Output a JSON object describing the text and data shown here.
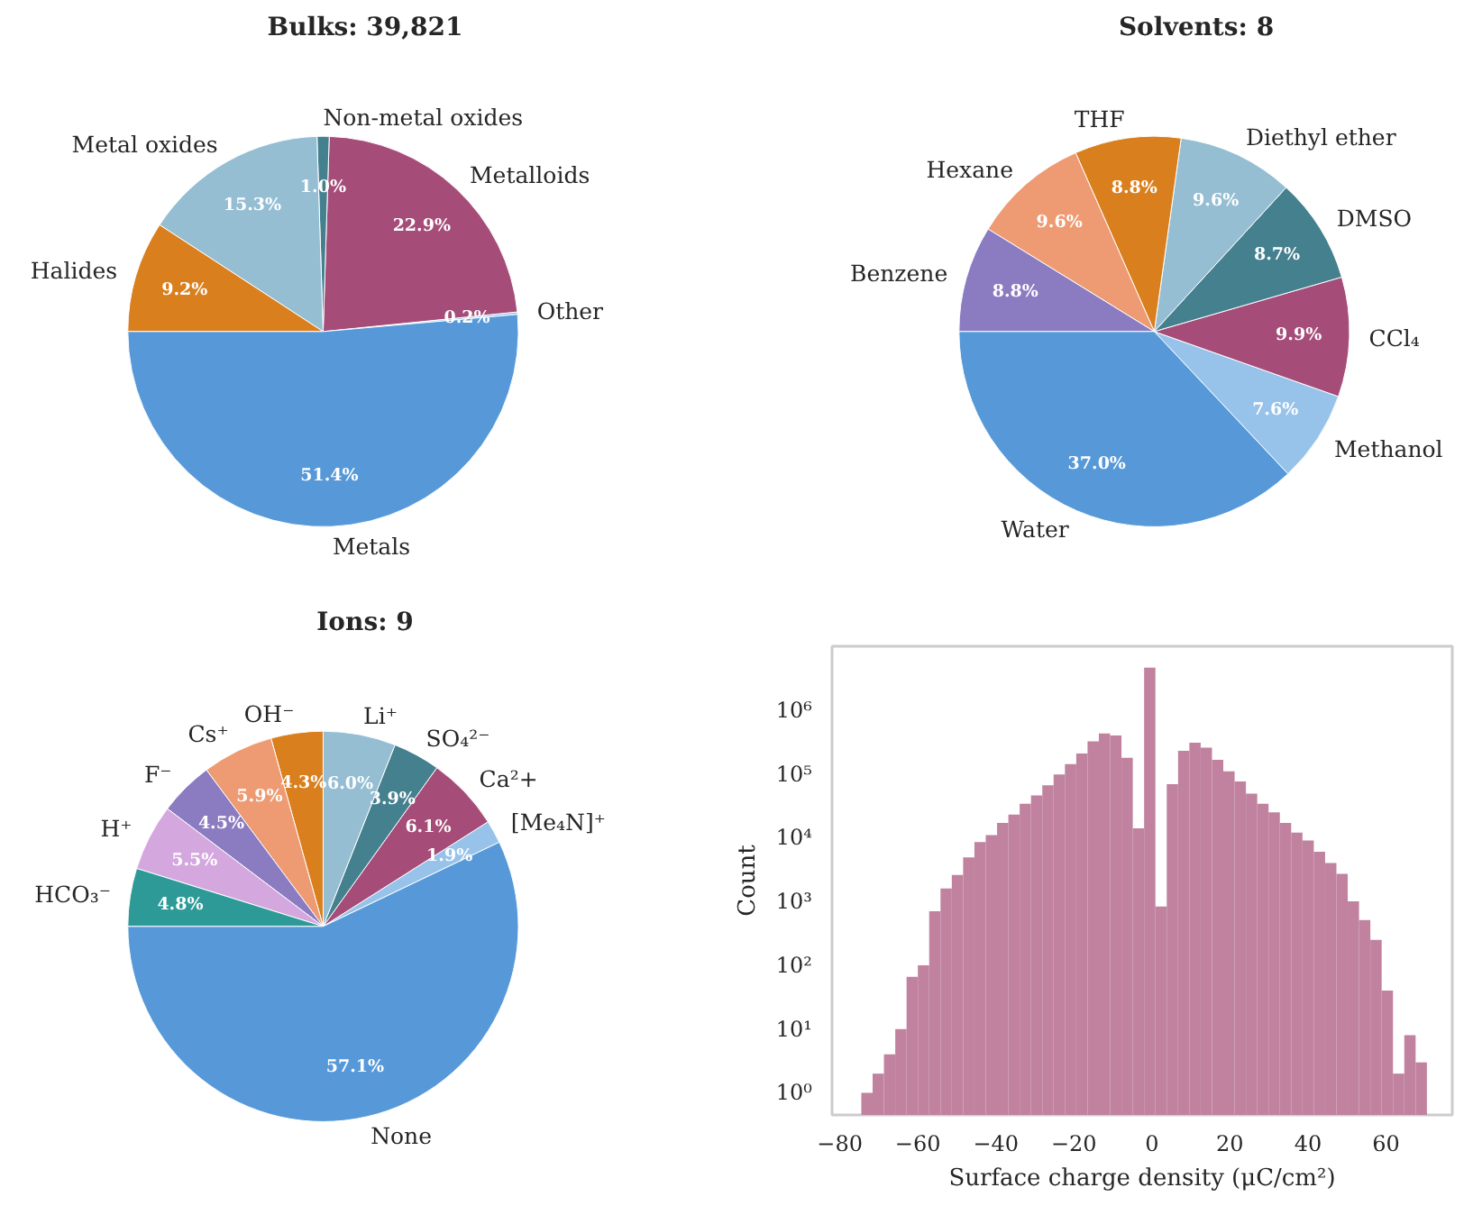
{
  "chart_data": [
    {
      "type": "pie",
      "title": "Bulks: 39,821",
      "categories": [
        "Other",
        "Metalloids",
        "Non-metal oxides",
        "Metal oxides",
        "Halides",
        "Metals"
      ],
      "values": [
        0.2,
        22.9,
        1.0,
        15.3,
        9.2,
        51.4
      ],
      "colors": [
        "#97c3ea",
        "#a54c78",
        "#45808f",
        "#95bed3",
        "#d97f1e",
        "#5799d8"
      ],
      "value_labels": [
        "0.2%",
        "22.9%",
        "1.0%",
        "15.3%",
        "9.2%",
        "51.4%"
      ]
    },
    {
      "type": "pie",
      "title": "Solvents: 8",
      "categories": [
        "Methanol",
        "CCl₄",
        "DMSO",
        "Diethyl ether",
        "THF",
        "Hexane",
        "Benzene",
        "Water"
      ],
      "values": [
        7.6,
        9.9,
        8.7,
        9.6,
        8.8,
        9.6,
        8.8,
        37.0
      ],
      "colors": [
        "#97c3ea",
        "#a54c78",
        "#45808f",
        "#95bed3",
        "#d97f1e",
        "#ee9a72",
        "#8b7bc0",
        "#5799d8"
      ],
      "value_labels": [
        "7.6%",
        "9.9%",
        "8.7%",
        "9.6%",
        "8.8%",
        "9.6%",
        "8.8%",
        "37.0%"
      ]
    },
    {
      "type": "pie",
      "title": "Ions: 9",
      "categories": [
        "[Me₄N]⁺",
        "Ca²+",
        "SO₄²⁻",
        "Li⁺",
        "OH⁻",
        "Cs⁺",
        "F⁻",
        "H⁺",
        "HCO₃⁻",
        "None"
      ],
      "values": [
        1.9,
        6.1,
        3.9,
        6.0,
        4.3,
        5.9,
        4.5,
        5.5,
        4.8,
        57.1
      ],
      "colors": [
        "#97c3ea",
        "#a54c78",
        "#45808f",
        "#95bed3",
        "#d97f1e",
        "#ee9a72",
        "#8b7bc0",
        "#d4a8df",
        "#2e9a97",
        "#5799d8"
      ],
      "value_labels": [
        "1.9%",
        "6.1%",
        "3.9%",
        "6.0%",
        "4.3%",
        "5.9%",
        "4.5%",
        "5.5%",
        "4.8%",
        "57.1%"
      ]
    },
    {
      "type": "histogram",
      "xlabel": "Surface charge density (μC/cm²)",
      "ylabel": "Count",
      "color": "#c0829f",
      "log": "y",
      "grid": false,
      "bins": [
        -74.5,
        -71.6,
        -68.7,
        -65.8,
        -62.9,
        -60.0,
        -57.1,
        -54.2,
        -51.3,
        -48.4,
        -45.5,
        -42.6,
        -39.7,
        -36.8,
        -33.9,
        -31.0,
        -28.1,
        -25.2,
        -22.3,
        -19.4,
        -16.5,
        -13.6,
        -10.7,
        -7.8,
        -4.9,
        -2.0,
        0.9,
        3.8,
        6.7,
        9.6,
        12.5,
        15.4,
        18.3,
        21.2,
        24.1,
        27.0,
        29.9,
        32.8,
        35.7,
        38.6,
        41.5,
        44.4,
        47.3,
        50.2,
        53.1,
        56.0,
        58.9,
        61.8,
        64.7,
        67.6,
        70.5
      ],
      "values": [
        1,
        2,
        4,
        10,
        66,
        100,
        700,
        1600,
        2600,
        4900,
        8500,
        11000,
        17000,
        23000,
        34000,
        46000,
        66000,
        98000,
        142000,
        209000,
        324000,
        430000,
        400000,
        178000,
        14000,
        4600000,
        830,
        69000,
        230000,
        309000,
        257000,
        166000,
        110000,
        76000,
        49000,
        34000,
        25000,
        17000,
        12000,
        9000,
        6000,
        4000,
        2700,
        1000,
        510,
        250,
        40,
        2,
        8,
        3
      ],
      "xlim": [
        -82,
        77
      ],
      "ylim": [
        0.45,
        10000000
      ],
      "xticks": [
        {
          "value": -80,
          "label": "−80"
        },
        {
          "value": -60,
          "label": "−60"
        },
        {
          "value": -40,
          "label": "−40"
        },
        {
          "value": -20,
          "label": "−20"
        },
        0,
        20,
        40,
        60
      ],
      "yticks": [
        {
          "value": 1,
          "label": "10⁰"
        },
        {
          "value": 10,
          "label": "10¹"
        },
        {
          "value": 100,
          "label": "10²"
        },
        {
          "value": 1000,
          "label": "10³"
        },
        {
          "value": 10000,
          "label": "10⁴"
        },
        {
          "value": 100000,
          "label": "10⁵"
        },
        {
          "value": 1000000,
          "label": "10⁶"
        }
      ]
    }
  ]
}
